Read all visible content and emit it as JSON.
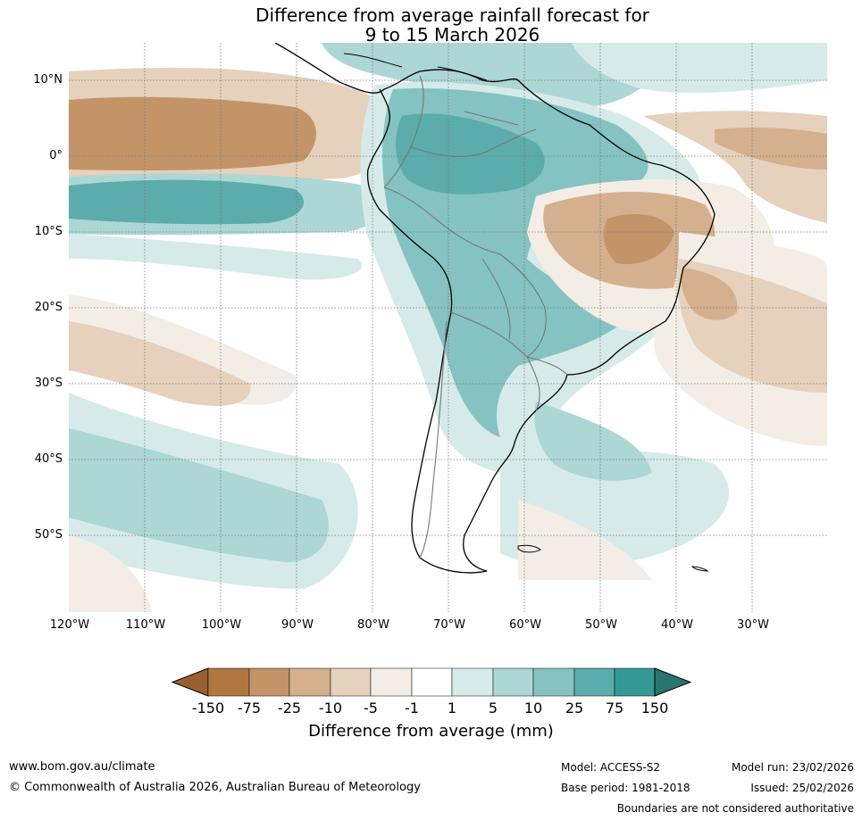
{
  "title": {
    "line1": "Difference from average rainfall forecast for",
    "line2": "9 to 15 March 2026"
  },
  "map": {
    "lat_labels": [
      "10°N",
      "0°",
      "10°S",
      "20°S",
      "30°S",
      "40°S",
      "50°S"
    ],
    "lon_labels": [
      "120°W",
      "110°W",
      "100°W",
      "90°W",
      "80°W",
      "70°W",
      "60°W",
      "50°W",
      "40°W",
      "30°W"
    ]
  },
  "colorbar": {
    "ticks": [
      "-150",
      "-75",
      "-25",
      "-10",
      "-5",
      "-1",
      "1",
      "5",
      "10",
      "25",
      "75",
      "150"
    ],
    "colors": [
      "#9a5f2e",
      "#b07740",
      "#c29468",
      "#d4b08e",
      "#e6d1bd",
      "#f3ede6",
      "#ffffff",
      "#d6ebe9",
      "#acd7d5",
      "#84c3c1",
      "#5bacaa",
      "#349996",
      "#2a7470"
    ],
    "label": "Difference from average (mm)"
  },
  "footer": {
    "website": "www.bom.gov.au/climate",
    "copyright": "© Commonwealth of Australia 2026, Australian Bureau of Meteorology",
    "model": "Model: ACCESS-S2",
    "base_period": "Base period: 1981-2018",
    "model_run": "Model run: 23/02/2026",
    "issued": "Issued: 25/02/2026",
    "disclaimer": "Boundaries are not considered authoritative"
  }
}
